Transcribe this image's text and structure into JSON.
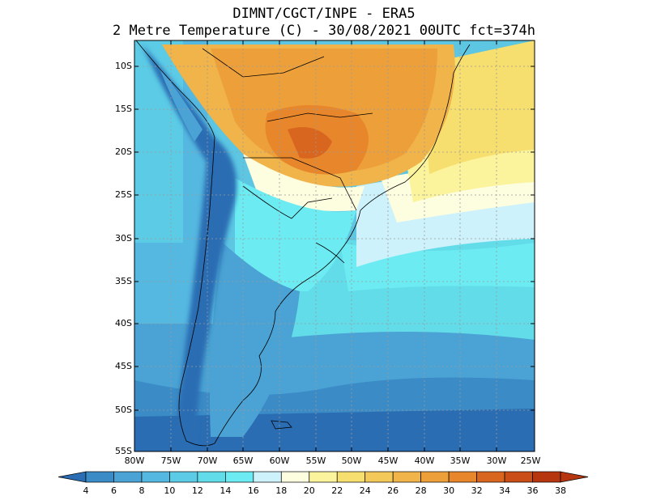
{
  "header": {
    "line1": "DIMNT/CGCT/INPE  -   ERA5",
    "line2": "2 Metre Temperature (C)  -   30/08/2021 00UTC fct=374h"
  },
  "map": {
    "region": "South America",
    "lat_labels": [
      "10S",
      "15S",
      "20S",
      "25S",
      "30S",
      "35S",
      "40S",
      "45S",
      "50S",
      "55S"
    ],
    "lon_labels": [
      "80W",
      "75W",
      "70W",
      "65W",
      "60W",
      "55W",
      "50W",
      "45W",
      "40W",
      "35W",
      "30W",
      "25W"
    ]
  },
  "colorbar": {
    "labels": [
      "4",
      "6",
      "8",
      "10",
      "12",
      "14",
      "16",
      "18",
      "20",
      "22",
      "24",
      "26",
      "28",
      "30",
      "32",
      "34",
      "36",
      "38"
    ],
    "colors": [
      "#2a6db3",
      "#3a8bc6",
      "#4aa3d4",
      "#55b8e0",
      "#5ccbe6",
      "#63dcea",
      "#6cecf2",
      "#cdf2fb",
      "#fdfde0",
      "#fbf49c",
      "#f6df6e",
      "#f3c95a",
      "#f0b44a",
      "#eda03a",
      "#e8862c",
      "#d8661f",
      "#c94e17",
      "#b63610"
    ]
  }
}
